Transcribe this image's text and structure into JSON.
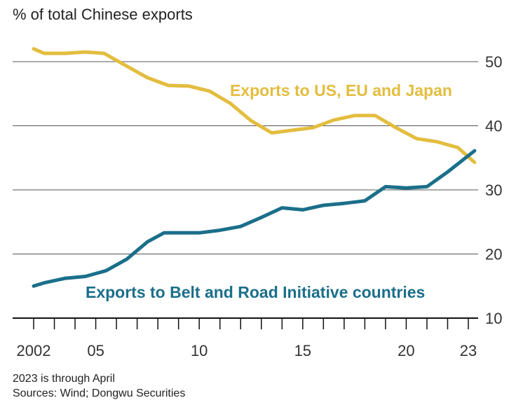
{
  "chart_data": {
    "type": "line",
    "subtitle": "% of total Chinese exports",
    "y_ticks": [
      "50",
      "40",
      "30",
      "20",
      "10"
    ],
    "ylim": [
      10,
      55
    ],
    "x_ticks": [
      {
        "year": 2002,
        "label": "2002"
      },
      {
        "year": 2005,
        "label": "05"
      },
      {
        "year": 2010,
        "label": "10"
      },
      {
        "year": 2015,
        "label": "15"
      },
      {
        "year": 2020,
        "label": "20"
      },
      {
        "year": 2023,
        "label": "23"
      }
    ],
    "xlim": [
      2002,
      2023.3
    ],
    "series": [
      {
        "name": "Exports to US, EU and Japan",
        "color": "#e3bd3f",
        "x": [
          2002,
          2002.5,
          2003.5,
          2004.5,
          2005.4,
          2006.5,
          2007.5,
          2008.5,
          2009.5,
          2010.5,
          2011.5,
          2012.5,
          2013.5,
          2014.5,
          2015.5,
          2016.5,
          2017.5,
          2018.5,
          2019.5,
          2020.5,
          2021.5,
          2022.5,
          2023.3
        ],
        "values": [
          52.0,
          51.3,
          51.3,
          51.5,
          51.3,
          49.3,
          47.5,
          46.3,
          46.2,
          45.4,
          43.5,
          40.8,
          38.9,
          39.3,
          39.7,
          40.9,
          41.6,
          41.6,
          39.7,
          38.0,
          37.5,
          36.6,
          34.3
        ]
      },
      {
        "name": "Exports to Belt and Road Initiative countries",
        "color": "#1b6f8a",
        "x": [
          2002,
          2002.5,
          2003.5,
          2004.5,
          2005.5,
          2006.5,
          2007.5,
          2008.3,
          2009,
          2010,
          2011,
          2012,
          2013,
          2014,
          2015,
          2016,
          2017,
          2018,
          2019,
          2020,
          2021,
          2022,
          2023.3
        ],
        "values": [
          15.0,
          15.5,
          16.2,
          16.5,
          17.4,
          19.2,
          21.9,
          23.3,
          23.3,
          23.3,
          23.7,
          24.3,
          25.7,
          27.2,
          26.9,
          27.6,
          27.9,
          28.3,
          30.5,
          30.3,
          30.5,
          32.8,
          36.1
        ]
      }
    ]
  },
  "footnote": "2023 is through April",
  "sources": "Sources: Wind; Dongwu Securities"
}
